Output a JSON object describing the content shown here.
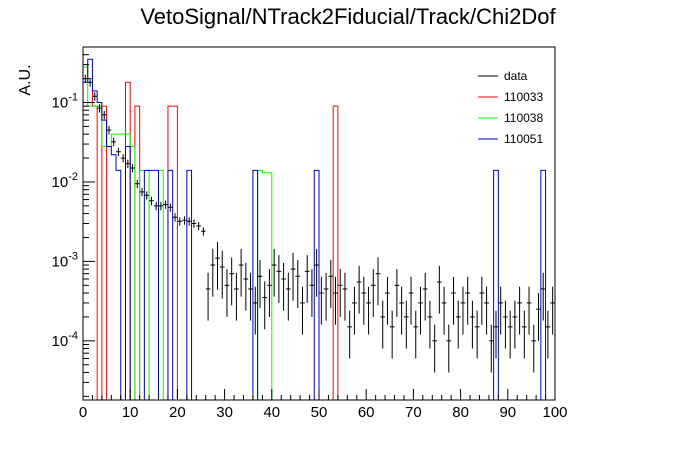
{
  "chart_data": {
    "type": "histogram",
    "title": "VetoSignal/NTrack2Fiducial/Track/Chi2Dof",
    "xlabel": "",
    "ylabel": "A.U.",
    "xlim": [
      0,
      100
    ],
    "ylim": [
      1.8e-05,
      0.5
    ],
    "yscale": "log",
    "grid": false,
    "legend_position": "top-right",
    "x_ticks": [
      {
        "value": 0,
        "label": "0"
      },
      {
        "value": 10,
        "label": "10"
      },
      {
        "value": 20,
        "label": "20"
      },
      {
        "value": 30,
        "label": "30"
      },
      {
        "value": 40,
        "label": "40"
      },
      {
        "value": 50,
        "label": "50"
      },
      {
        "value": 60,
        "label": "60"
      },
      {
        "value": 70,
        "label": "70"
      },
      {
        "value": 80,
        "label": "80"
      },
      {
        "value": 90,
        "label": "90"
      },
      {
        "value": 100,
        "label": "100"
      }
    ],
    "y_ticks": [
      {
        "value": 0.1,
        "base": "10",
        "exp": "-1"
      },
      {
        "value": 0.01,
        "base": "10",
        "exp": "-2"
      },
      {
        "value": 0.001,
        "base": "10",
        "exp": "-3"
      },
      {
        "value": 0.0001,
        "base": "10",
        "exp": "-4"
      }
    ],
    "series": [
      {
        "name": "data",
        "color": "#000000",
        "style": "points",
        "bin_width": 1,
        "x": [
          0.5,
          1.5,
          2.5,
          3.5,
          4.5,
          5.5,
          6.5,
          7.5,
          8.5,
          9.5,
          10.5,
          11.5,
          12.5,
          13.5,
          14.5,
          15.5,
          16.5,
          17.5,
          18.5,
          19.5,
          20.5,
          21.5,
          22.5,
          23.5,
          24.5,
          25.5,
          26.5,
          27.5,
          28.5,
          29.5,
          30.5,
          31.5,
          32.5,
          33.5,
          34.5,
          35.5,
          36.5,
          37.5,
          38.5,
          39.5,
          40.5,
          41.5,
          42.5,
          43.5,
          44.5,
          45.5,
          46.5,
          47.5,
          48.5,
          49.5,
          50.5,
          51.5,
          52.5,
          53.5,
          54.5,
          55.5,
          56.5,
          57.5,
          58.5,
          59.5,
          60.5,
          61.5,
          62.5,
          63.5,
          64.5,
          65.5,
          66.5,
          67.5,
          68.5,
          69.5,
          70.5,
          71.5,
          72.5,
          73.5,
          74.5,
          75.5,
          76.5,
          77.5,
          78.5,
          79.5,
          80.5,
          81.5,
          82.5,
          83.5,
          84.5,
          85.5,
          86.5,
          87.5,
          88.5,
          89.5,
          90.5,
          91.5,
          92.5,
          93.5,
          94.5,
          95.5,
          96.5,
          97.5,
          98.5,
          99.5
        ],
        "y": [
          0.2,
          0.18,
          0.12,
          0.085,
          0.07,
          0.045,
          0.032,
          0.024,
          0.02,
          0.017,
          0.015,
          0.0095,
          0.0075,
          0.0068,
          0.0058,
          0.005,
          0.005,
          0.0052,
          0.0048,
          0.0036,
          0.0032,
          0.0033,
          0.0032,
          0.003,
          0.0028,
          0.0024,
          0.00045,
          0.0009,
          0.0011,
          0.00085,
          0.0005,
          0.0007,
          0.00045,
          0.0009,
          0.0006,
          0.00045,
          0.0003,
          0.00065,
          0.00035,
          0.0005,
          0.0009,
          0.00075,
          0.0006,
          0.00045,
          0.0008,
          0.00065,
          0.0003,
          0.00075,
          0.0005,
          0.0009,
          0.0004,
          0.00045,
          0.00065,
          0.0004,
          0.0005,
          0.00045,
          0.00015,
          0.0003,
          0.00055,
          0.0004,
          0.0003,
          0.0005,
          0.0007,
          0.0002,
          0.0004,
          0.00015,
          0.0005,
          0.0003,
          0.0002,
          0.0004,
          0.00015,
          0.0003,
          0.00045,
          0.0002,
          0.0001,
          0.00055,
          0.0003,
          0.0001,
          0.0004,
          0.0002,
          0.0003,
          0.0004,
          0.0002,
          0.00015,
          0.0004,
          0.0003,
          0.0001,
          0.00015,
          0.0003,
          0.0002,
          0.00015,
          0.0002,
          0.0003,
          0.00015,
          0.0003,
          0.0001,
          0.00025,
          0.00045,
          0.00015,
          0.0003
        ]
      },
      {
        "name": "110033",
        "color": "#ff0000",
        "style": "step",
        "bin_edges": [
          0,
          1,
          2,
          3,
          4,
          5,
          6,
          7,
          8,
          9,
          10,
          11,
          12,
          13,
          14,
          15,
          16,
          17,
          18,
          19,
          20,
          21,
          22,
          23,
          24,
          25,
          26,
          27,
          28,
          29,
          30,
          31,
          32,
          33,
          34,
          35,
          36,
          37,
          38,
          39,
          40,
          41,
          42,
          43,
          44,
          45,
          46,
          47,
          48,
          49,
          50,
          51,
          52,
          53,
          54,
          55,
          56,
          57,
          58,
          59,
          60,
          61,
          62,
          63,
          64,
          65,
          66,
          67,
          68,
          69,
          70,
          71,
          72,
          73,
          74,
          75,
          76,
          77,
          78,
          79,
          80,
          81,
          82,
          83,
          84,
          85,
          86,
          87,
          88,
          89,
          90,
          91,
          92,
          93,
          94,
          95,
          96,
          97,
          98,
          99,
          100
        ],
        "values": [
          0.28,
          0.2,
          0.09,
          0,
          0.09,
          0,
          0,
          0,
          0,
          0.18,
          0,
          0.09,
          0,
          0,
          0,
          0,
          0,
          0,
          0.09,
          0.09,
          0,
          0,
          0,
          0,
          0,
          0,
          0,
          0,
          0,
          0,
          0,
          0,
          0,
          0,
          0,
          0,
          0,
          0,
          0,
          0,
          0,
          0,
          0,
          0,
          0,
          0,
          0,
          0,
          0,
          0,
          0,
          0,
          0,
          0.09,
          0,
          0,
          0,
          0,
          0,
          0,
          0,
          0,
          0,
          0,
          0,
          0,
          0,
          0,
          0,
          0,
          0,
          0,
          0,
          0,
          0,
          0,
          0,
          0,
          0,
          0,
          0,
          0,
          0,
          0,
          0,
          0,
          0,
          0,
          0,
          0,
          0,
          0,
          0,
          0,
          0,
          0,
          0,
          0,
          0,
          0
        ]
      },
      {
        "name": "110038",
        "color": "#00ff00",
        "style": "step",
        "bin_edges": [
          0,
          1,
          2,
          3,
          4,
          5,
          6,
          7,
          8,
          9,
          10,
          11,
          12,
          13,
          14,
          15,
          16,
          17,
          18,
          19,
          20,
          21,
          22,
          23,
          24,
          25,
          26,
          27,
          28,
          29,
          30,
          31,
          32,
          33,
          34,
          35,
          36,
          37,
          38,
          39,
          40,
          41,
          42,
          43,
          44,
          45,
          46,
          47,
          48,
          49,
          50,
          51,
          52,
          53,
          54,
          55,
          56,
          57,
          58,
          59,
          60,
          61,
          62,
          63,
          64,
          65,
          66,
          67,
          68,
          69,
          70,
          71,
          72,
          73,
          74,
          75,
          76,
          77,
          78,
          79,
          80,
          81,
          82,
          83,
          84,
          85,
          86,
          87,
          88,
          89,
          90,
          91,
          92,
          93,
          94,
          95,
          96,
          97,
          98,
          99,
          100
        ],
        "values": [
          0.28,
          0.09,
          0.09,
          0.09,
          0.028,
          0.028,
          0.04,
          0.04,
          0.04,
          0.04,
          0.028,
          0,
          0.014,
          0.014,
          0,
          0,
          0.014,
          0,
          0,
          0,
          0,
          0,
          0,
          0,
          0,
          0,
          0,
          0,
          0,
          0,
          0,
          0,
          0,
          0,
          0,
          0,
          0,
          0.014,
          0.013,
          0.013,
          0,
          0,
          0,
          0,
          0,
          0,
          0,
          0,
          0,
          0,
          0,
          0,
          0,
          0,
          0,
          0,
          0,
          0,
          0,
          0,
          0,
          0,
          0,
          0,
          0,
          0,
          0,
          0,
          0,
          0,
          0,
          0,
          0,
          0,
          0,
          0,
          0,
          0,
          0,
          0,
          0,
          0,
          0,
          0,
          0,
          0,
          0,
          0,
          0,
          0,
          0,
          0,
          0,
          0,
          0,
          0,
          0,
          0,
          0,
          0
        ]
      },
      {
        "name": "110051",
        "color": "#0000cc",
        "style": "step",
        "bin_edges": [
          0,
          1,
          2,
          3,
          4,
          5,
          6,
          7,
          8,
          9,
          10,
          11,
          12,
          13,
          14,
          15,
          16,
          17,
          18,
          19,
          20,
          21,
          22,
          23,
          24,
          25,
          26,
          27,
          28,
          29,
          30,
          31,
          32,
          33,
          34,
          35,
          36,
          37,
          38,
          39,
          40,
          41,
          42,
          43,
          44,
          45,
          46,
          47,
          48,
          49,
          50,
          51,
          52,
          53,
          54,
          55,
          56,
          57,
          58,
          59,
          60,
          61,
          62,
          63,
          64,
          65,
          66,
          67,
          68,
          69,
          70,
          71,
          72,
          73,
          74,
          75,
          76,
          77,
          78,
          79,
          80,
          81,
          82,
          83,
          84,
          85,
          86,
          87,
          88,
          89,
          90,
          91,
          92,
          93,
          94,
          95,
          96,
          97,
          98,
          99,
          100
        ],
        "values": [
          0.18,
          0.35,
          0.14,
          0.1,
          0.06,
          0.028,
          0.022,
          0.014,
          0,
          0.028,
          0,
          0,
          0,
          0.014,
          0.014,
          0.014,
          0,
          0,
          0.014,
          0,
          0,
          0,
          0.014,
          0,
          0,
          0,
          0,
          0,
          0,
          0,
          0,
          0,
          0,
          0,
          0,
          0,
          0.014,
          0,
          0,
          0,
          0,
          0,
          0,
          0,
          0,
          0,
          0,
          0,
          0,
          0.014,
          0,
          0,
          0,
          0,
          0,
          0,
          0,
          0,
          0,
          0,
          0,
          0,
          0,
          0,
          0,
          0,
          0,
          0,
          0,
          0,
          0,
          0,
          0,
          0,
          0,
          0,
          0,
          0,
          0,
          0,
          0,
          0,
          0,
          0,
          0,
          0,
          0,
          0.014,
          0,
          0,
          0,
          0,
          0,
          0,
          0,
          0,
          0,
          0.014,
          0,
          0
        ]
      }
    ]
  }
}
